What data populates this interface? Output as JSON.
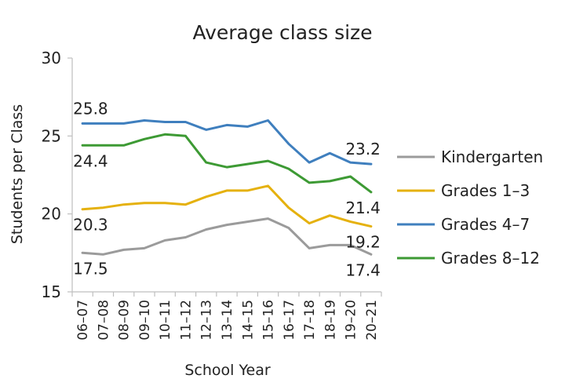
{
  "chart_data": {
    "type": "line",
    "title": "Average class size",
    "xlabel": "School Year",
    "ylabel": "Students per Class",
    "ylim": [
      15,
      30
    ],
    "yticks": [
      15,
      20,
      25,
      30
    ],
    "grid": false,
    "legend_position": "right",
    "categories": [
      "06–07",
      "07–08",
      "08–09",
      "09–10",
      "10–11",
      "11–12",
      "12–13",
      "13–14",
      "14–15",
      "15–16",
      "16–17",
      "17–18",
      "18–19",
      "19–20",
      "20–21"
    ],
    "series": [
      {
        "name": "Kindergarten",
        "color": "#9b9b9b",
        "values": [
          17.5,
          17.4,
          17.7,
          17.8,
          18.3,
          18.5,
          19.0,
          19.3,
          19.5,
          19.7,
          19.1,
          17.8,
          18.0,
          18.0,
          17.4
        ],
        "labels": [
          {
            "index": 0,
            "text": "17.5",
            "pos": "below"
          },
          {
            "index": 14,
            "text": "17.4",
            "pos": "below"
          }
        ]
      },
      {
        "name": "Grades 1–3",
        "color": "#e5b10e",
        "values": [
          20.3,
          20.4,
          20.6,
          20.7,
          20.7,
          20.6,
          21.1,
          21.5,
          21.5,
          21.8,
          20.4,
          19.4,
          19.9,
          19.5,
          19.2
        ],
        "labels": [
          {
            "index": 0,
            "text": "20.3",
            "pos": "below"
          },
          {
            "index": 14,
            "text": "19.2",
            "pos": "below"
          }
        ]
      },
      {
        "name": "Grades 4–7",
        "color": "#3f7fbe",
        "values": [
          25.8,
          25.8,
          25.8,
          26.0,
          25.9,
          25.9,
          25.4,
          25.7,
          25.6,
          26.0,
          24.5,
          23.3,
          23.9,
          23.3,
          23.2
        ],
        "labels": [
          {
            "index": 0,
            "text": "25.8",
            "pos": "above"
          },
          {
            "index": 14,
            "text": "23.2",
            "pos": "above"
          }
        ]
      },
      {
        "name": "Grades 8–12",
        "color": "#3d9a34",
        "values": [
          24.4,
          24.4,
          24.4,
          24.8,
          25.1,
          25.0,
          23.3,
          23.0,
          23.2,
          23.4,
          22.9,
          22.0,
          22.1,
          22.4,
          21.4
        ],
        "labels": [
          {
            "index": 0,
            "text": "24.4",
            "pos": "below"
          },
          {
            "index": 14,
            "text": "21.4",
            "pos": "below"
          }
        ]
      }
    ]
  }
}
